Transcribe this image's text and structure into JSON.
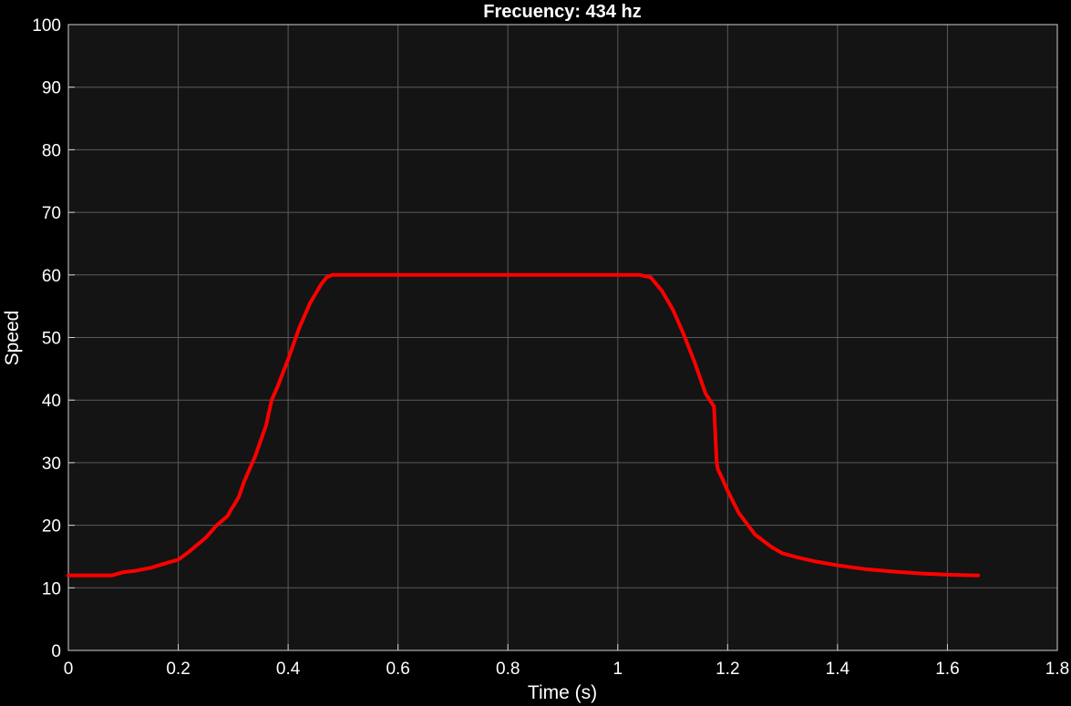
{
  "chart_data": {
    "type": "line",
    "title": "Frecuency: 434 hz",
    "xlabel": "Time (s)",
    "ylabel": "Speed",
    "xlim": [
      0,
      1.8
    ],
    "ylim": [
      0,
      100
    ],
    "grid": true,
    "x_ticks": [
      0,
      0.2,
      0.4,
      0.6,
      0.8,
      1,
      1.2,
      1.4,
      1.6,
      1.8
    ],
    "x_tick_labels": [
      "0",
      "0.2",
      "0.4",
      "0.6",
      "0.8",
      "1",
      "1.2",
      "1.4",
      "1.6",
      "1.8"
    ],
    "y_ticks": [
      0,
      10,
      20,
      30,
      40,
      50,
      60,
      70,
      80,
      90,
      100
    ],
    "y_tick_labels": [
      "0",
      "10",
      "20",
      "30",
      "40",
      "50",
      "60",
      "70",
      "80",
      "90",
      "100"
    ],
    "colors": {
      "background": "#000000",
      "plot_area": "#141414",
      "grid": "#5a5a5a",
      "line": "#ff0000",
      "text": "#ffffff"
    },
    "series": [
      {
        "name": "Speed",
        "x": [
          0,
          0.05,
          0.08,
          0.1,
          0.12,
          0.15,
          0.18,
          0.2,
          0.22,
          0.25,
          0.27,
          0.29,
          0.298,
          0.3,
          0.31,
          0.32,
          0.34,
          0.36,
          0.37,
          0.38,
          0.4,
          0.42,
          0.44,
          0.46,
          0.47,
          0.48,
          0.5,
          0.6,
          0.8,
          1.0,
          1.02,
          1.04,
          1.06,
          1.08,
          1.1,
          1.12,
          1.14,
          1.16,
          1.175,
          1.18,
          1.182,
          1.19,
          1.2,
          1.22,
          1.25,
          1.28,
          1.3,
          1.33,
          1.36,
          1.4,
          1.45,
          1.5,
          1.55,
          1.6,
          1.65,
          1.656
        ],
        "values": [
          12,
          12,
          12,
          12.5,
          12.7,
          13.2,
          14,
          14.5,
          15.8,
          18,
          20,
          21.5,
          22.8,
          23,
          24.5,
          27,
          31,
          36,
          40,
          42,
          46.5,
          51.5,
          55.5,
          58.5,
          59.6,
          60,
          60,
          60,
          60,
          60,
          60,
          60,
          59.6,
          57.5,
          54.5,
          50.5,
          46,
          41,
          39,
          30,
          29,
          27.5,
          25.5,
          22,
          18.5,
          16.5,
          15.5,
          14.8,
          14.2,
          13.6,
          13,
          12.6,
          12.3,
          12.1,
          12,
          12
        ]
      }
    ]
  }
}
